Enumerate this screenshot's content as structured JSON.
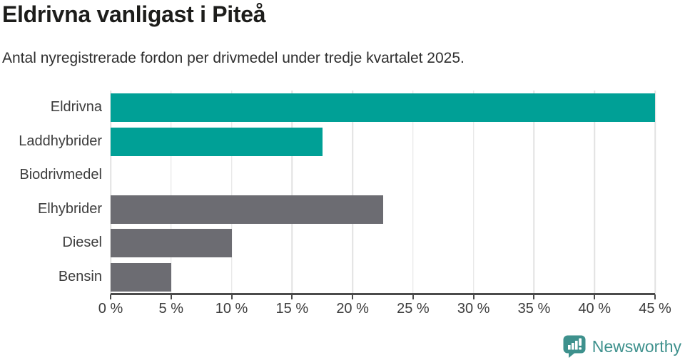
{
  "header": {
    "title": "Eldrivna vanligast i Piteå",
    "subtitle": "Antal nyregistrerade fordon per drivmedel under tredje kvartalet 2025."
  },
  "chart_data": {
    "type": "bar",
    "orientation": "horizontal",
    "title": "Eldrivna vanligast i Piteå",
    "subtitle": "Antal nyregistrerade fordon per drivmedel under tredje kvartalet 2025.",
    "categories": [
      "Eldrivna",
      "Laddhybrider",
      "Biodrivmedel",
      "Elhybrider",
      "Diesel",
      "Bensin"
    ],
    "values": [
      45,
      17.5,
      0,
      22.5,
      10,
      5
    ],
    "unit": "%",
    "xlabel": "",
    "ylabel": "",
    "xlim": [
      0,
      45
    ],
    "xticks": [
      0,
      5,
      10,
      15,
      20,
      25,
      30,
      35,
      40,
      45
    ],
    "xtick_suffix": " %",
    "grid": true,
    "legend": "none",
    "bar_colors": [
      "#00a096",
      "#00a096",
      "#00a096",
      "#6c6c72",
      "#6c6c72",
      "#6c6c72"
    ]
  },
  "footer": {
    "brand": "Newsworthy"
  },
  "colors": {
    "bar_teal": "#00a096",
    "bar_gray": "#6c6c72",
    "brand_teal": "#3e918d",
    "gridline": "#e2e2e2",
    "axis": "#4b4b4b",
    "title_text": "#1d1d1b",
    "body_text": "#3c3c3c"
  }
}
